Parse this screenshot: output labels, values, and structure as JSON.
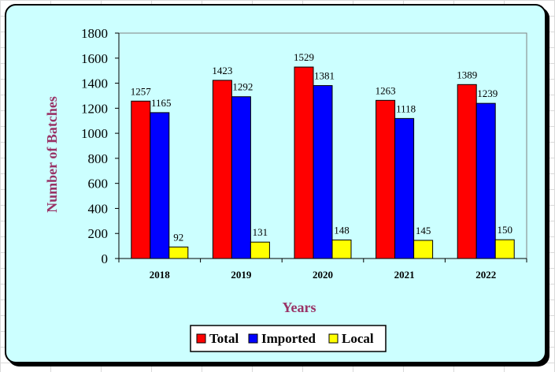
{
  "chart_data": {
    "type": "bar",
    "xlabel": "Years",
    "ylabel": "Number of Batches",
    "ylim": [
      0,
      1800
    ],
    "ystep": 200,
    "grid": false,
    "legend_position": "bottom",
    "categories": [
      "2018",
      "2019",
      "2020",
      "2021",
      "2022"
    ],
    "series": [
      {
        "name": "Total",
        "color": "#ff0000",
        "values": [
          1257,
          1423,
          1529,
          1263,
          1389
        ]
      },
      {
        "name": "Imported",
        "color": "#0000ff",
        "values": [
          1165,
          1292,
          1381,
          1118,
          1239
        ]
      },
      {
        "name": "Local",
        "color": "#ffff00",
        "values": [
          92,
          131,
          148,
          145,
          150
        ]
      }
    ]
  },
  "colors": {
    "plot_background": "#ccffff",
    "axis_title": "#993366"
  }
}
